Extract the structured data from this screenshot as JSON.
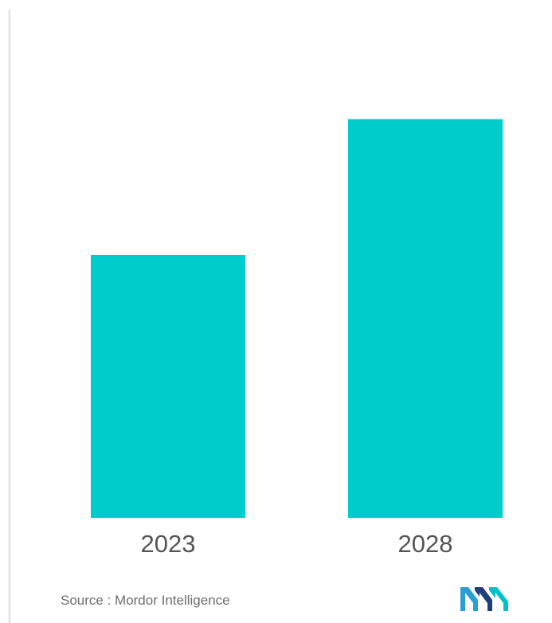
{
  "chart_data": {
    "type": "bar",
    "categories": [
      "2023",
      "2028"
    ],
    "values": [
      60,
      91
    ],
    "title": "",
    "xlabel": "",
    "ylabel": "",
    "ylim": [
      0,
      100
    ],
    "grid": false,
    "legend": "none",
    "bar_color": "#00cccc"
  },
  "source": {
    "label": "Source : Mordor Intelligence"
  },
  "logo": {
    "icon": "mordor-intelligence-logo-icon",
    "colors": [
      "#2a9fd6",
      "#1f3f7a",
      "#00c2c7"
    ]
  },
  "colors": {
    "axis_line": "#e6e6e6",
    "tick_label": "#555555",
    "source_text": "#6e6e6e"
  }
}
